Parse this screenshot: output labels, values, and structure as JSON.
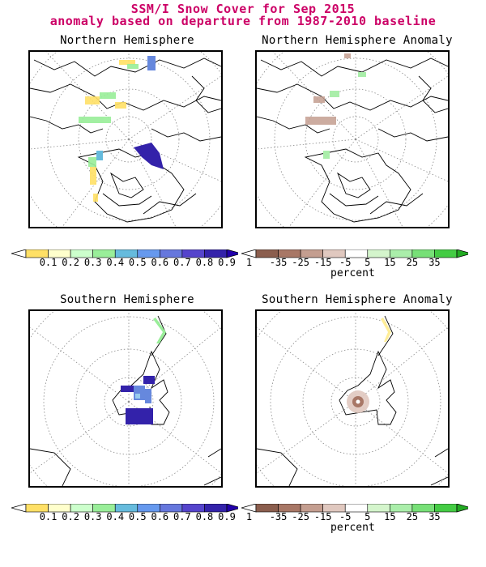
{
  "header": {
    "title_line1": "SSM/I Snow Cover for Sep 2015",
    "title_line2": "anomaly based on departure from 1987-2010 baseline"
  },
  "panels": {
    "nh": {
      "title": "Northern Hemisphere"
    },
    "nh_anom": {
      "title": "Northern Hemisphere Anomaly"
    },
    "sh": {
      "title": "Southern Hemisphere"
    },
    "sh_anom": {
      "title": "Southern Hemisphere Anomaly"
    }
  },
  "colorbars": {
    "cover": {
      "labels": [
        "0.1",
        "0.2",
        "0.3",
        "0.4",
        "0.5",
        "0.6",
        "0.7",
        "0.8",
        "0.9",
        "1"
      ],
      "colors": [
        "#ffffff",
        "#ffe066",
        "#ffffcc",
        "#ccffcc",
        "#99ee99",
        "#66bbdd",
        "#6699ee",
        "#6677dd",
        "#5544cc",
        "#3322aa",
        "#2200aa"
      ]
    },
    "anomaly": {
      "labels": [
        "-35",
        "-25",
        "-15",
        "-5",
        "5",
        "15",
        "25",
        "35"
      ],
      "colors": [
        "#ffffff",
        "#8b5e4e",
        "#a87766",
        "#c49e90",
        "#e0c8bf",
        "#ffffff",
        "#d4f5cc",
        "#aaeeaa",
        "#77e077",
        "#44cc44",
        "#22aa22"
      ],
      "units": "percent"
    }
  }
}
